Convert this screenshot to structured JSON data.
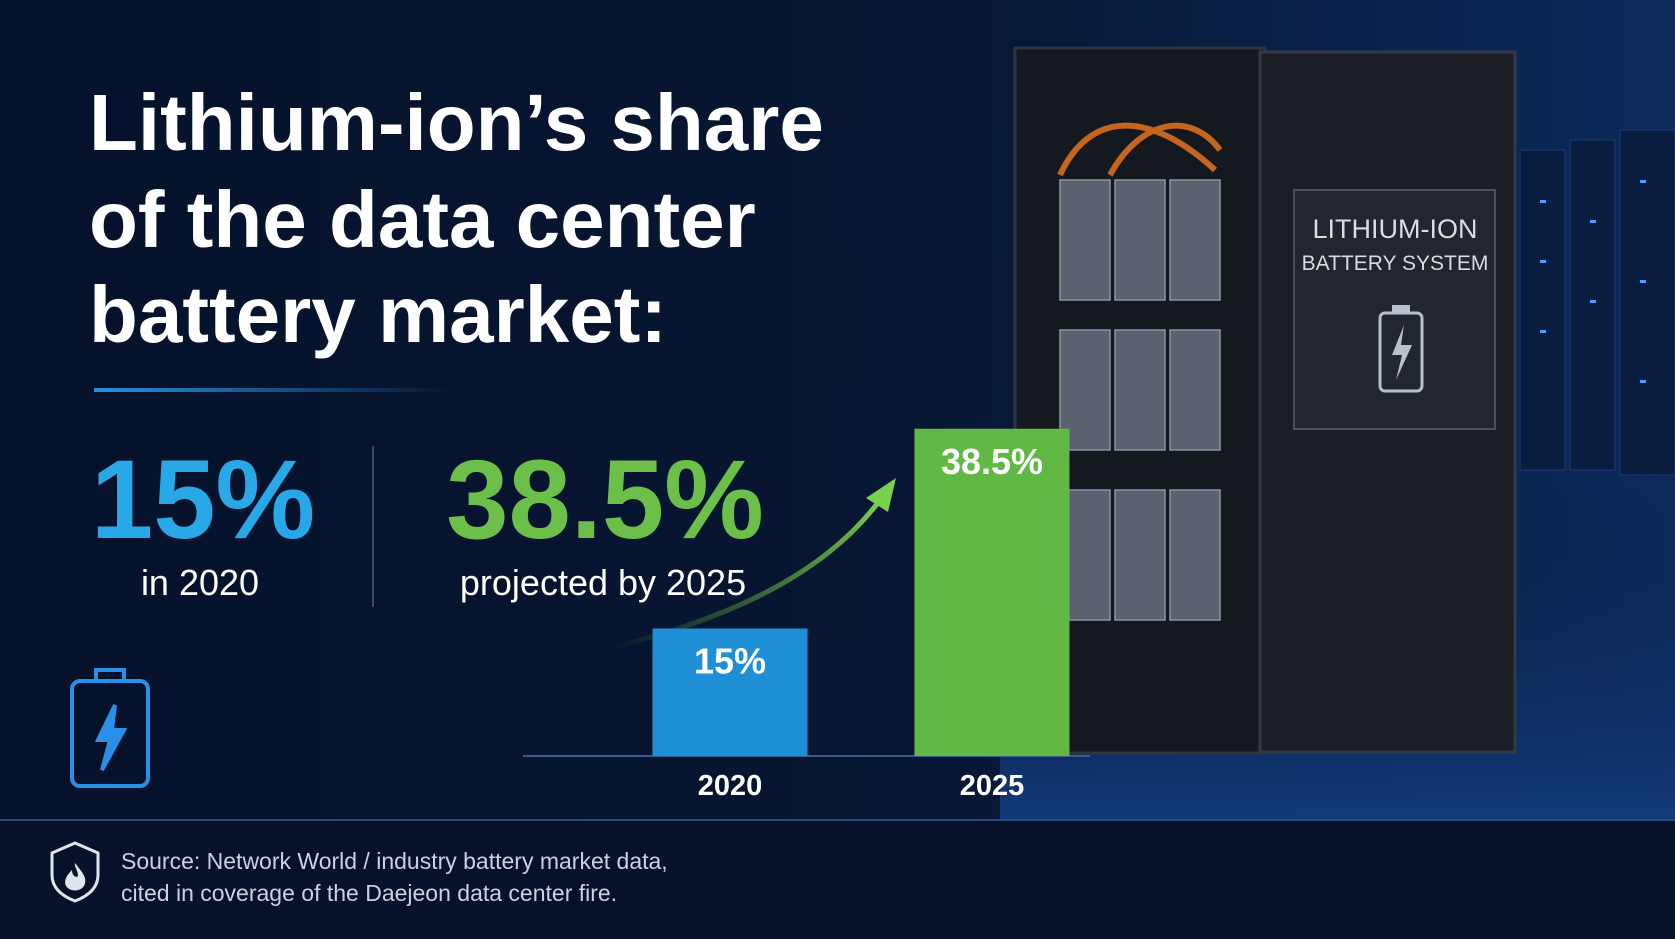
{
  "headline": {
    "lines": [
      "Lithium-ion’s share",
      "of the data center",
      "battery market:"
    ]
  },
  "stats": [
    {
      "value": "15%",
      "caption": "in 2020"
    },
    {
      "value": "38.5%",
      "caption": "projected by 2025"
    }
  ],
  "chart_data": {
    "type": "bar",
    "categories": [
      "2020",
      "2025"
    ],
    "values": [
      15,
      38.5
    ],
    "value_labels": [
      "15%",
      "38.5%"
    ],
    "colors": [
      "#1f8fd6",
      "#62b844"
    ]
  },
  "panel": {
    "title": "LITHIUM-ION",
    "subtitle": "BATTERY SYSTEM"
  },
  "source": [
    "Source: Network World / industry battery market data,",
    "cited in coverage of the Daejeon data center fire."
  ]
}
